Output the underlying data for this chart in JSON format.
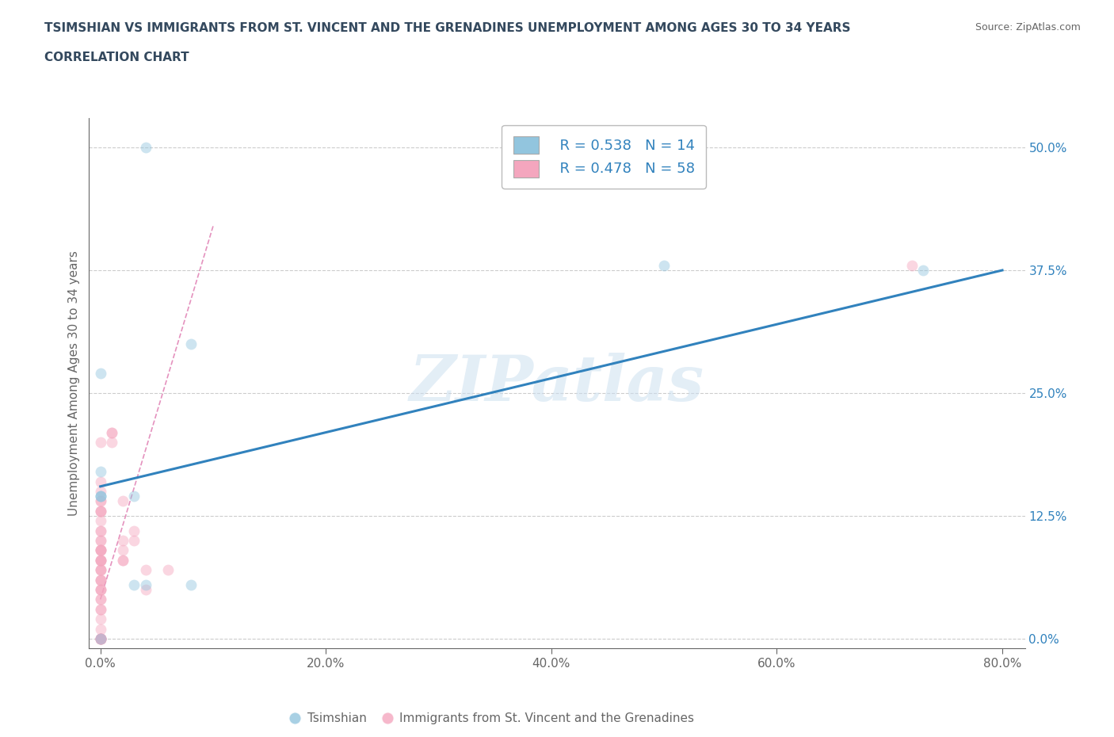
{
  "title_line1": "TSIMSHIAN VS IMMIGRANTS FROM ST. VINCENT AND THE GRENADINES UNEMPLOYMENT AMONG AGES 30 TO 34 YEARS",
  "title_line2": "CORRELATION CHART",
  "source_text": "Source: ZipAtlas.com",
  "ylabel": "Unemployment Among Ages 30 to 34 years",
  "xlim": [
    -0.01,
    0.82
  ],
  "ylim": [
    -0.01,
    0.53
  ],
  "xtick_labels": [
    "0.0%",
    "20.0%",
    "40.0%",
    "60.0%",
    "80.0%"
  ],
  "xtick_vals": [
    0.0,
    0.2,
    0.4,
    0.6,
    0.8
  ],
  "ytick_labels": [
    "0.0%",
    "12.5%",
    "25.0%",
    "37.5%",
    "50.0%"
  ],
  "ytick_vals": [
    0.0,
    0.125,
    0.25,
    0.375,
    0.5
  ],
  "blue_color": "#92c5de",
  "pink_color": "#f4a6be",
  "trend_blue_color": "#3182bd",
  "trend_pink_color": "#de77ae",
  "watermark": "ZIPatlas",
  "legend_R_blue": "R = 0.538",
  "legend_N_blue": "N = 14",
  "legend_R_pink": "R = 0.478",
  "legend_N_pink": "N = 58",
  "legend_label_blue": "Tsimshian",
  "legend_label_pink": "Immigrants from St. Vincent and the Grenadines",
  "tsimshian_x": [
    0.04,
    0.0,
    0.0,
    0.0,
    0.0,
    0.0,
    0.03,
    0.03,
    0.04,
    0.08,
    0.08,
    0.5,
    0.73,
    0.0
  ],
  "tsimshian_y": [
    0.5,
    0.27,
    0.17,
    0.145,
    0.145,
    0.145,
    0.145,
    0.055,
    0.055,
    0.3,
    0.055,
    0.38,
    0.375,
    0.0
  ],
  "immigrants_x": [
    0.0,
    0.0,
    0.0,
    0.0,
    0.0,
    0.0,
    0.0,
    0.0,
    0.0,
    0.0,
    0.0,
    0.0,
    0.0,
    0.0,
    0.0,
    0.0,
    0.0,
    0.0,
    0.0,
    0.0,
    0.0,
    0.0,
    0.0,
    0.0,
    0.0,
    0.0,
    0.0,
    0.0,
    0.0,
    0.0,
    0.0,
    0.0,
    0.0,
    0.0,
    0.0,
    0.0,
    0.0,
    0.0,
    0.0,
    0.0,
    0.0,
    0.0,
    0.0,
    0.0,
    0.01,
    0.01,
    0.01,
    0.02,
    0.02,
    0.02,
    0.02,
    0.02,
    0.03,
    0.03,
    0.04,
    0.04,
    0.06,
    0.72
  ],
  "immigrants_y": [
    0.0,
    0.0,
    0.0,
    0.0,
    0.0,
    0.0,
    0.0,
    0.0,
    0.01,
    0.02,
    0.03,
    0.03,
    0.04,
    0.04,
    0.05,
    0.05,
    0.05,
    0.06,
    0.06,
    0.06,
    0.07,
    0.07,
    0.07,
    0.08,
    0.08,
    0.08,
    0.08,
    0.09,
    0.09,
    0.09,
    0.09,
    0.1,
    0.1,
    0.11,
    0.11,
    0.12,
    0.13,
    0.13,
    0.13,
    0.14,
    0.14,
    0.15,
    0.16,
    0.2,
    0.2,
    0.21,
    0.21,
    0.08,
    0.08,
    0.09,
    0.1,
    0.14,
    0.1,
    0.11,
    0.05,
    0.07,
    0.07,
    0.38
  ],
  "blue_trend_x": [
    0.0,
    0.8
  ],
  "blue_trend_y": [
    0.155,
    0.375
  ],
  "pink_trend_x": [
    0.0,
    0.1
  ],
  "pink_trend_y": [
    0.04,
    0.42
  ],
  "title_color": "#34495e",
  "axis_color": "#666666",
  "grid_color": "#cccccc",
  "marker_size": 100,
  "marker_alpha": 0.45
}
